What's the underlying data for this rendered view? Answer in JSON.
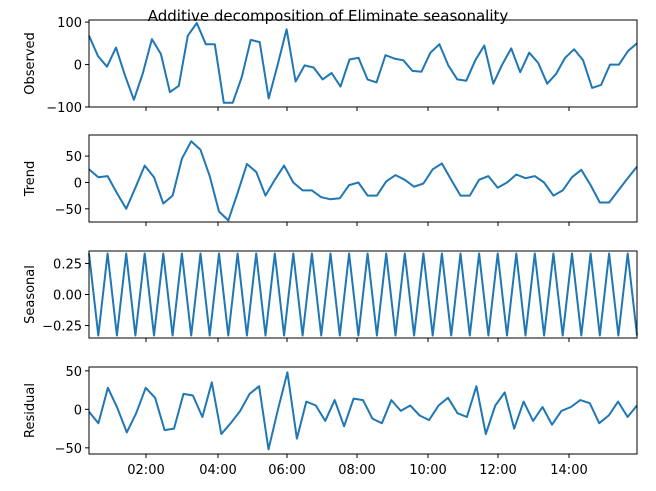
{
  "title": "Additive decomposition of Eliminate seasonality",
  "colors": {
    "line": "#1f77b4",
    "axes": "#000000"
  },
  "chart_data": [
    {
      "type": "line",
      "ylabel": "Observed",
      "ylim": [
        -100,
        105
      ],
      "yticks": [
        100,
        0,
        -100
      ],
      "xticks": [
        "02:00",
        "04:00",
        "06:00",
        "08:00",
        "10:00",
        "12:00",
        "14:00"
      ],
      "values": [
        68,
        20,
        -5,
        40,
        -25,
        -83,
        -20,
        60,
        25,
        -65,
        -50,
        68,
        98,
        48,
        48,
        -90,
        -90,
        -30,
        58,
        53,
        -80,
        0,
        83,
        -40,
        -2,
        -7,
        -35,
        -20,
        -52,
        12,
        16,
        -35,
        -42,
        22,
        14,
        10,
        -15,
        -17,
        28,
        48,
        -2,
        -35,
        -38,
        10,
        45,
        -45,
        0,
        38,
        -18,
        28,
        4,
        -45,
        -22,
        16,
        36,
        10,
        -55,
        -48,
        0,
        0,
        32,
        50
      ]
    },
    {
      "type": "line",
      "ylabel": "Trend",
      "ylim": [
        -75,
        90
      ],
      "yticks": [
        50,
        0,
        -50
      ],
      "xticks": [
        "02:00",
        "04:00",
        "06:00",
        "08:00",
        "10:00",
        "12:00",
        "14:00"
      ],
      "values": [
        25,
        10,
        12,
        -20,
        -50,
        -10,
        32,
        10,
        -40,
        -25,
        45,
        78,
        62,
        12,
        -55,
        -72,
        -20,
        35,
        20,
        -25,
        5,
        32,
        0,
        -15,
        -15,
        -28,
        -32,
        -30,
        -5,
        0,
        -25,
        -25,
        2,
        14,
        5,
        -8,
        -2,
        25,
        36,
        5,
        -25,
        -25,
        5,
        12,
        -10,
        0,
        15,
        8,
        12,
        0,
        -25,
        -15,
        10,
        24,
        -5,
        -38,
        -38,
        -15,
        8,
        30
      ]
    },
    {
      "type": "line",
      "ylabel": "Seasonal",
      "ylim": [
        -0.35,
        0.35
      ],
      "yticks": [
        0.25,
        0.0,
        -0.25
      ],
      "ytick_labels": [
        "0.25",
        "0.00",
        "−0.25"
      ],
      "xticks": [
        "02:00",
        "04:00",
        "06:00",
        "08:00",
        "10:00",
        "12:00",
        "14:00"
      ],
      "pattern": [
        0.33,
        -0.33
      ],
      "points": 60
    },
    {
      "type": "line",
      "ylabel": "Residual",
      "ylim": [
        -58,
        55
      ],
      "yticks": [
        50,
        0,
        -50
      ],
      "xticks": [
        "02:00",
        "04:00",
        "06:00",
        "08:00",
        "10:00",
        "12:00",
        "14:00"
      ],
      "values": [
        -3,
        -18,
        28,
        2,
        -30,
        -5,
        28,
        15,
        -27,
        -25,
        20,
        18,
        -10,
        35,
        -32,
        -18,
        -2,
        20,
        30,
        -52,
        0,
        48,
        -38,
        10,
        5,
        -15,
        12,
        -22,
        14,
        12,
        -12,
        -18,
        12,
        -2,
        5,
        -8,
        -14,
        5,
        15,
        -5,
        -10,
        30,
        -32,
        5,
        22,
        -25,
        10,
        -15,
        3,
        -20,
        -2,
        3,
        12,
        8,
        -18,
        -8,
        10,
        -10,
        5
      ]
    }
  ]
}
